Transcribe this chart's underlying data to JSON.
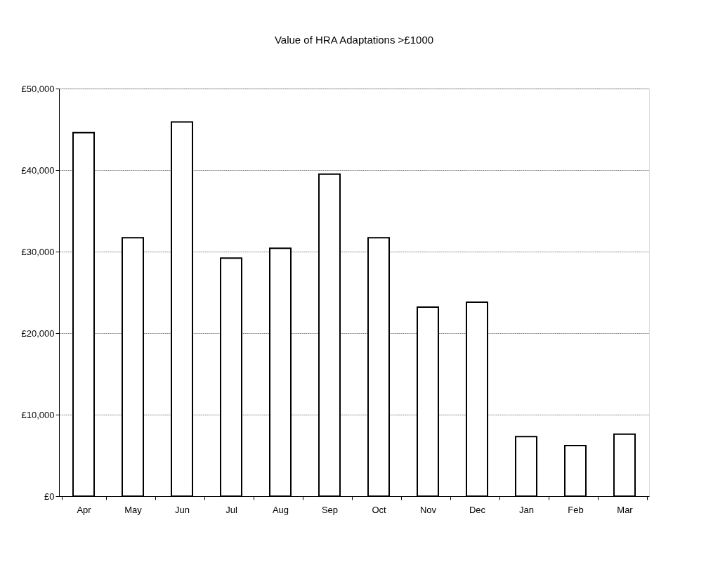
{
  "chart_data": {
    "type": "bar",
    "title": "Value of HRA Adaptations >£1000",
    "categories": [
      "Apr",
      "May",
      "Jun",
      "Jul",
      "Aug",
      "Sep",
      "Oct",
      "Nov",
      "Dec",
      "Jan",
      "Feb",
      "Mar"
    ],
    "values": [
      44600,
      31700,
      45900,
      29200,
      30400,
      39500,
      31700,
      23200,
      23800,
      7300,
      6200,
      7600
    ],
    "color": "#ffffff",
    "ylim": [
      0,
      50000
    ],
    "yticks": [
      {
        "value": 0,
        "label": "£0"
      },
      {
        "value": 10000,
        "label": "£10,000"
      },
      {
        "value": 20000,
        "label": "£20,000"
      },
      {
        "value": 30000,
        "label": "£30,000"
      },
      {
        "value": 40000,
        "label": "£40,000"
      },
      {
        "value": 50000,
        "label": "£50,000"
      }
    ],
    "grid": "y"
  }
}
